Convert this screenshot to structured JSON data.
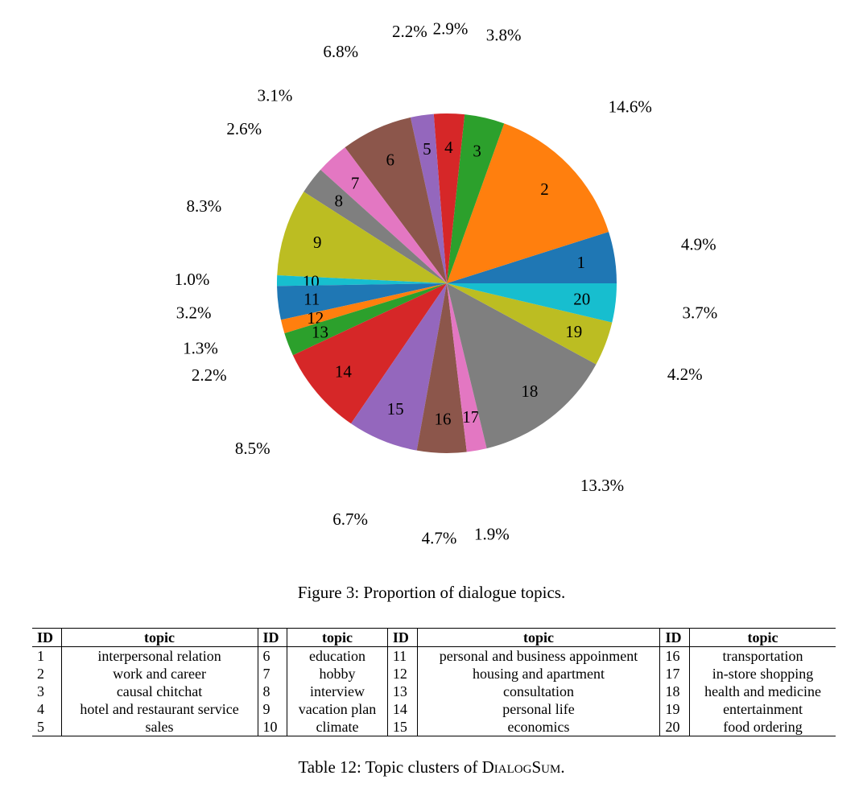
{
  "chart_data": {
    "type": "pie",
    "title": "",
    "slices": [
      {
        "label": "1",
        "pct_label": "4.9%",
        "value": 4.9,
        "color": "#1f77b4"
      },
      {
        "label": "2",
        "pct_label": "14.6%",
        "value": 14.6,
        "color": "#ff7f0e"
      },
      {
        "label": "3",
        "pct_label": "3.8%",
        "value": 3.8,
        "color": "#2ca02c"
      },
      {
        "label": "4",
        "pct_label": "2.9%",
        "value": 2.9,
        "color": "#d62728"
      },
      {
        "label": "5",
        "pct_label": "2.2%",
        "value": 2.2,
        "color": "#9467bd"
      },
      {
        "label": "6",
        "pct_label": "6.8%",
        "value": 6.8,
        "color": "#8c564b"
      },
      {
        "label": "7",
        "pct_label": "3.1%",
        "value": 3.1,
        "color": "#e377c2"
      },
      {
        "label": "8",
        "pct_label": "2.6%",
        "value": 2.6,
        "color": "#7f7f7f"
      },
      {
        "label": "9",
        "pct_label": "8.3%",
        "value": 8.3,
        "color": "#bcbd22"
      },
      {
        "label": "10",
        "pct_label": "1.0%",
        "value": 1.0,
        "color": "#17becf"
      },
      {
        "label": "11",
        "pct_label": "3.2%",
        "value": 3.2,
        "color": "#1f77b4"
      },
      {
        "label": "12",
        "pct_label": "1.3%",
        "value": 1.3,
        "color": "#ff7f0e"
      },
      {
        "label": "13",
        "pct_label": "2.2%",
        "value": 2.2,
        "color": "#2ca02c"
      },
      {
        "label": "14",
        "pct_label": "8.5%",
        "value": 8.5,
        "color": "#d62728"
      },
      {
        "label": "15",
        "pct_label": "6.7%",
        "value": 6.7,
        "color": "#9467bd"
      },
      {
        "label": "16",
        "pct_label": "4.7%",
        "value": 4.7,
        "color": "#8c564b"
      },
      {
        "label": "17",
        "pct_label": "1.9%",
        "value": 1.9,
        "color": "#e377c2"
      },
      {
        "label": "18",
        "pct_label": "13.3%",
        "value": 13.3,
        "color": "#7f7f7f"
      },
      {
        "label": "19",
        "pct_label": "4.2%",
        "value": 4.2,
        "color": "#bcbd22"
      },
      {
        "label": "20",
        "pct_label": "3.7%",
        "value": 3.7,
        "color": "#17becf"
      }
    ]
  },
  "figure_caption": "Figure 3: Proportion of dialogue topics.",
  "table": {
    "headers": [
      "ID",
      "topic",
      "ID",
      "topic",
      "ID",
      "topic",
      "ID",
      "topic"
    ],
    "rows": [
      [
        "1",
        "interpersonal relation",
        "6",
        "education",
        "11",
        "personal and business appoinment",
        "16",
        "transportation"
      ],
      [
        "2",
        "work and career",
        "7",
        "hobby",
        "12",
        "housing and apartment",
        "17",
        "in-store shopping"
      ],
      [
        "3",
        "causal chitchat",
        "8",
        "interview",
        "13",
        "consultation",
        "18",
        "health and medicine"
      ],
      [
        "4",
        "hotel and restaurant service",
        "9",
        "vacation plan",
        "14",
        "personal life",
        "19",
        "entertainment"
      ],
      [
        "5",
        "sales",
        "10",
        "climate",
        "15",
        "economics",
        "20",
        "food ordering"
      ]
    ],
    "caption_prefix": "Table 12: Topic clusters of ",
    "caption_name": "DialogSum",
    "caption_suffix": "."
  }
}
